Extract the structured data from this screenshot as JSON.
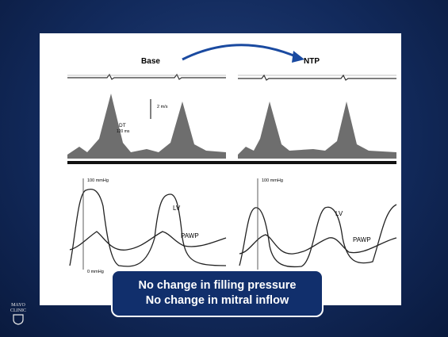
{
  "figure": {
    "left": {
      "label": "Base",
      "dt_label": "DT",
      "dt_value": "120 ms",
      "velocity_scale": "2 m/s",
      "pressure_top": "100 mmHg",
      "pressure_bottom": "0 mmHg",
      "lv_label": "LV",
      "pawp_label": "PAWP"
    },
    "right": {
      "label": "NTP",
      "pressure_top": "100 mmHg",
      "lv_label": "LV",
      "pawp_label": "PAWP"
    }
  },
  "caption": {
    "lines": [
      "No change in filling pressure",
      "No change in mitral inflow"
    ]
  },
  "logo": {
    "lines": [
      "MAYO",
      "CLINIC"
    ]
  }
}
